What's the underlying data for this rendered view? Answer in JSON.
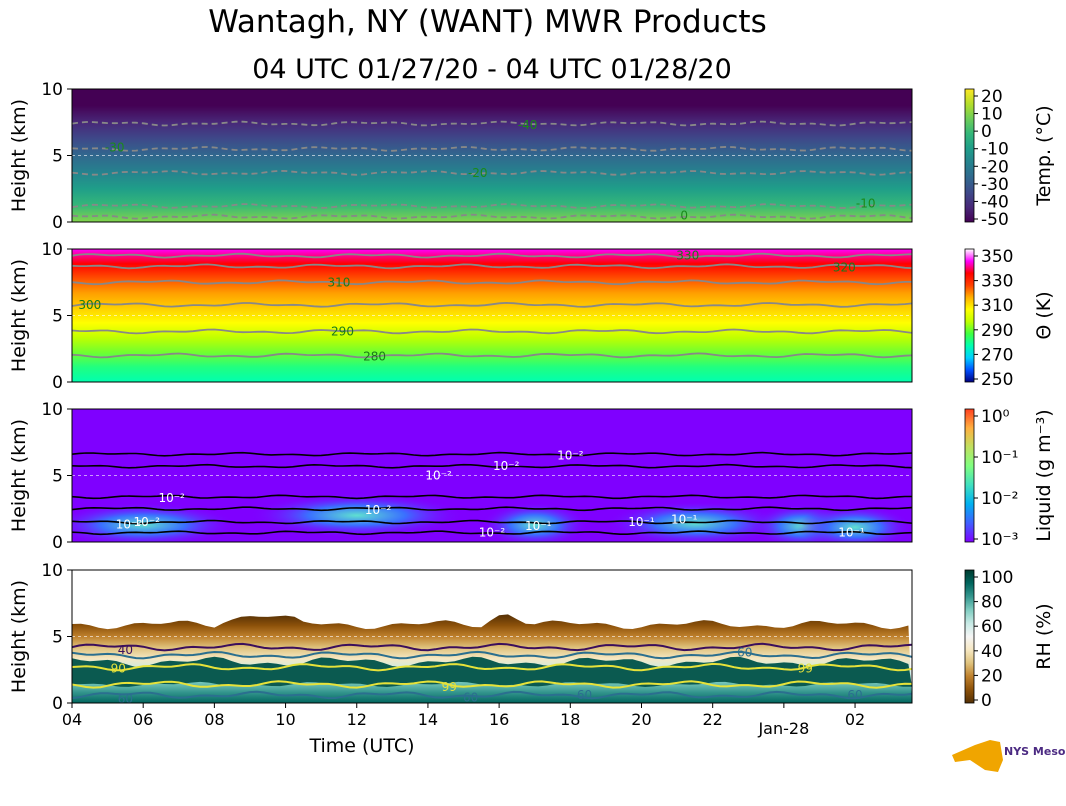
{
  "figure": {
    "title": "Wantagh, NY (WANT) MWR Products",
    "subtitle": "04 UTC 01/27/20 - 04 UTC 01/28/20",
    "xlabel": "Time (UTC)",
    "x_ticks": [
      "04",
      "06",
      "08",
      "10",
      "12",
      "14",
      "16",
      "18",
      "20",
      "22",
      "Jan-28",
      "02"
    ],
    "x_tick_hours": [
      0,
      2,
      4,
      6,
      8,
      10,
      12,
      14,
      16,
      18,
      20,
      22
    ],
    "x_range_hours": [
      0,
      23.6
    ],
    "logo_text": "NYS Mesonet"
  },
  "chart_data": [
    {
      "type": "heatmap",
      "id": "temperature",
      "ylabel": "Height (km)",
      "ylim": [
        0,
        10
      ],
      "y_ticks": [
        "0",
        "5",
        "10"
      ],
      "colorbar_label": "Temp. (°C)",
      "colorbar_ticks": [
        "20",
        "10",
        "0",
        "-10",
        "-20",
        "-30",
        "-40",
        "-50"
      ],
      "colorbar_range": [
        -50,
        20
      ],
      "colormap": [
        "#440154",
        "#482878",
        "#3e4989",
        "#31688e",
        "#26828e",
        "#1f9e89",
        "#35b779",
        "#6ece58",
        "#b5de2b",
        "#fde725"
      ],
      "contour_labels": [
        {
          "text": "-30",
          "t": 1.2,
          "h": 5.6
        },
        {
          "text": "-40",
          "t": 12.8,
          "h": 7.3
        },
        {
          "text": "-20",
          "t": 11.4,
          "h": 3.7
        },
        {
          "text": "0",
          "t": 17.2,
          "h": 0.5
        },
        {
          "text": "-10",
          "t": 22.3,
          "h": 1.4
        }
      ]
    },
    {
      "type": "heatmap",
      "id": "theta",
      "ylabel": "Height (km)",
      "ylim": [
        0,
        10
      ],
      "y_ticks": [
        "0",
        "5",
        "10"
      ],
      "colorbar_label": "Θ (K)",
      "colorbar_ticks": [
        "350",
        "330",
        "310",
        "290",
        "270",
        "250"
      ],
      "colorbar_range": [
        250,
        360
      ],
      "colormap": [
        "#000080",
        "#0050ff",
        "#00d0ff",
        "#00ffb0",
        "#40ff40",
        "#c0ff00",
        "#ffff00",
        "#ffb000",
        "#ff4000",
        "#ff0000",
        "#ff00ff",
        "#ffffff"
      ],
      "contour_labels": [
        {
          "text": "300",
          "t": 0.5,
          "h": 5.8
        },
        {
          "text": "310",
          "t": 7.5,
          "h": 7.5
        },
        {
          "text": "290",
          "t": 7.6,
          "h": 3.8
        },
        {
          "text": "280",
          "t": 8.5,
          "h": 1.9
        },
        {
          "text": "330",
          "t": 17.3,
          "h": 9.5
        },
        {
          "text": "320",
          "t": 21.7,
          "h": 8.6
        }
      ]
    },
    {
      "type": "heatmap",
      "id": "liquid",
      "ylabel": "Height (km)",
      "ylim": [
        0,
        10
      ],
      "y_ticks": [
        "0",
        "5",
        "10"
      ],
      "colorbar_label": "Liquid (g m⁻³)",
      "colorbar_ticks": [
        "10⁰",
        "10⁻¹",
        "10⁻²",
        "10⁻³"
      ],
      "colorbar_scale": "log",
      "colorbar_range": [
        0.001,
        1
      ],
      "colormap": [
        "#7f00ff",
        "#4060ff",
        "#00b0f0",
        "#40e0c0",
        "#80ff80",
        "#c0e060",
        "#ffb040",
        "#ff4020"
      ],
      "contour_labels": [
        {
          "text": "10⁻²",
          "t": 14.0,
          "h": 6.5
        },
        {
          "text": "10⁻²",
          "t": 12.2,
          "h": 5.7
        },
        {
          "text": "10⁻²",
          "t": 10.3,
          "h": 5.0
        },
        {
          "text": "10⁻²",
          "t": 2.8,
          "h": 3.3
        },
        {
          "text": "10⁻²",
          "t": 8.6,
          "h": 2.4
        },
        {
          "text": "10⁻²",
          "t": 11.8,
          "h": 0.7
        },
        {
          "text": "10⁻²",
          "t": 1.6,
          "h": 1.3
        },
        {
          "text": "10⁻²",
          "t": 2.1,
          "h": 1.5
        },
        {
          "text": "10⁻¹",
          "t": 13.1,
          "h": 1.2
        },
        {
          "text": "10⁻¹",
          "t": 16.0,
          "h": 1.5
        },
        {
          "text": "10⁻¹",
          "t": 17.2,
          "h": 1.7
        },
        {
          "text": "10⁻¹",
          "t": 21.9,
          "h": 0.7
        }
      ]
    },
    {
      "type": "heatmap",
      "id": "rh",
      "ylabel": "Height (km)",
      "ylim": [
        0,
        10
      ],
      "y_ticks": [
        "0",
        "5",
        "10"
      ],
      "colorbar_label": "RH (%)",
      "colorbar_ticks": [
        "100",
        "80",
        "60",
        "40",
        "20",
        "0"
      ],
      "colorbar_range": [
        0,
        105
      ],
      "colormap": [
        "#543005",
        "#8c510a",
        "#bf812d",
        "#dfc27d",
        "#f6e8c3",
        "#f5f5f5",
        "#c7eae5",
        "#80cdc1",
        "#35978f",
        "#01665e",
        "#003c30"
      ],
      "contour_labels": [
        {
          "text": "40",
          "t": 1.5,
          "h": 4.0
        },
        {
          "text": "90",
          "t": 1.3,
          "h": 2.6
        },
        {
          "text": "60",
          "t": 1.5,
          "h": 0.3
        },
        {
          "text": "60",
          "t": 18.9,
          "h": 3.8
        },
        {
          "text": "99",
          "t": 20.6,
          "h": 2.6
        },
        {
          "text": "99",
          "t": 10.6,
          "h": 1.2
        },
        {
          "text": "60",
          "t": 11.2,
          "h": 0.4
        },
        {
          "text": "60",
          "t": 14.4,
          "h": 0.6
        },
        {
          "text": "60",
          "t": 22.0,
          "h": 0.6
        }
      ]
    }
  ]
}
